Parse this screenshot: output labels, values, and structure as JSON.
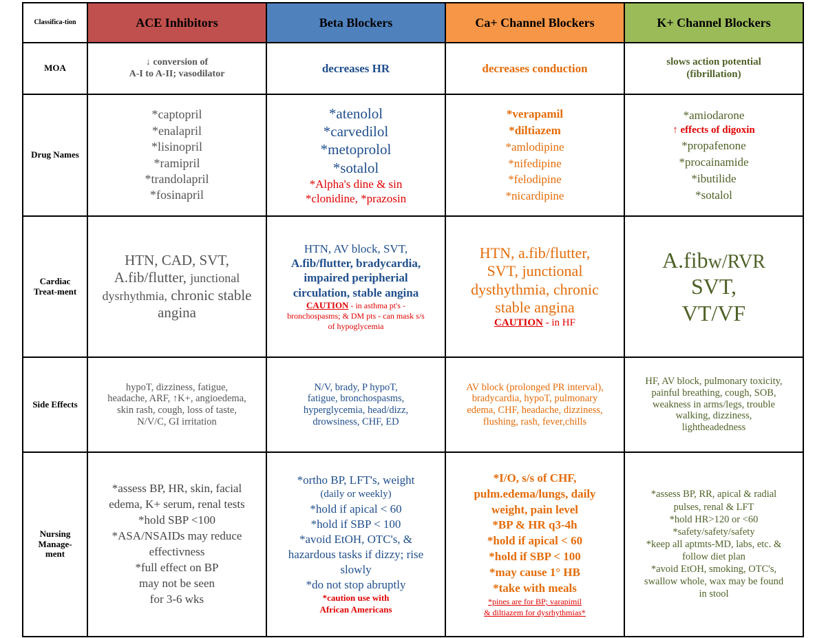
{
  "headers": {
    "classification": "Classifica-tion",
    "ace": "ACE Inhibitors",
    "beta": "Beta Blockers",
    "ca": "Ca+ Channel Blockers",
    "k": "K+ Channel Blockers"
  },
  "colors": {
    "ace": "#c0504d",
    "beta": "#4f81bd",
    "ca": "#f79646",
    "k": "#9bbb59"
  },
  "rows": {
    "moa": {
      "label": "MOA",
      "ace": [
        "↓ conversion of",
        "A-I to A-II; vasodilator"
      ],
      "beta": "decreases HR",
      "ca": "decreases conduction",
      "k": [
        "slows action potential",
        "(fibrillation)"
      ]
    },
    "drugs": {
      "label": "Drug Names",
      "ace": [
        "*captopril",
        "*enalapril",
        "*lisinopril",
        "*ramipril",
        "*trandolapril",
        "*fosinapril"
      ],
      "beta": [
        "*atenolol",
        "*carvedilol",
        "*metoprolol",
        "*sotalol"
      ],
      "beta_red": [
        "*Alpha's dine & sin",
        "*clonidine, *prazosin"
      ],
      "ca_bold": [
        "*verapamil",
        "*diltiazem"
      ],
      "ca": [
        "*amlodipine",
        "*nifedipine",
        "*felodipine",
        "*nicardipine"
      ],
      "k": {
        "first": "*amiodarone",
        "red": "↑ effects of digoxin",
        "rest": [
          "*propafenone",
          "*procainamide",
          "*ibutilide",
          "*sotalol"
        ]
      }
    },
    "cardiac": {
      "label": [
        "Cardiac",
        "Treat-ment"
      ],
      "ace": [
        "HTN, CAD, SVT,",
        "A.fib/flutter,",
        "junctional",
        "dysrhythmia,",
        "chronic stable",
        "angina"
      ],
      "beta": [
        "HTN, AV block, SVT,",
        "A.fib/flutter, bradycardia,",
        "impaired peripherial",
        "circulation, stable angina"
      ],
      "beta_caution": {
        "word": "CAUTION",
        "text": " - in asthma pt's -",
        "lines": [
          "bronchospasms; & DM pts - can mask s/s",
          "of hypoglycemia"
        ]
      },
      "ca": [
        "HTN, a.fib/flutter,",
        "SVT, junctional",
        "dysthythmia, chronic",
        "stable angina"
      ],
      "ca_caution": {
        "word": "CAUTION",
        "text": " - in HF"
      },
      "k": {
        "afib": "A.fib",
        "w": "w/RVR",
        "lines": [
          "SVT,",
          "VT/VF"
        ]
      }
    },
    "side": {
      "label": "Side Effects",
      "ace": [
        "hypoT, dizziness, fatigue,",
        "headache, ARF, ↑K+, angioedema,",
        "skin rash, cough, loss of taste,",
        "N/V/C, GI irritation"
      ],
      "beta": [
        "N/V,  brady, P hypoT,",
        "fatigue, bronchospasms,",
        "hyperglycemia, head/dizz,",
        "drowsiness, CHF, ED"
      ],
      "ca": [
        "AV block (prolonged PR interval),",
        "bradycardia, hypoT, pulmonary",
        "edema, CHF, headache, dizziness,",
        "flushing, rash, fever,chills"
      ],
      "k": [
        "HF, AV block, pulmonary toxicity,",
        "painful breathing, cough, SOB,",
        "weakness in arms/legs, trouble",
        "walking, dizziness,",
        "lightheadedness"
      ]
    },
    "nursing": {
      "label": [
        "Nursing",
        "Manage-",
        "ment"
      ],
      "ace": [
        "*assess BP, HR, skin, facial",
        "edema, K+ serum, renal tests",
        "*hold SBP <100",
        "*ASA/NSAIDs may reduce",
        "effectivness",
        "*full effect on BP",
        "may not be seen",
        "for 3-6 wks"
      ],
      "beta": {
        "line1": "*ortho BP, LFT's, weight",
        "line2": "(daily or weekly)",
        "rest": [
          "*hold if apical < 60",
          "*hold if SBP < 100",
          "*avoid EtOH, OTC's, &",
          "hazardous tasks if dizzy; rise",
          "slowly",
          "*do not stop abruptly"
        ],
        "red": [
          "*caution use with",
          "African Americans"
        ]
      },
      "ca": {
        "lines": [
          "*I/O, s/s of CHF,",
          "pulm.edema/lungs, daily",
          "weight, pain level",
          "*BP & HR q3-4h",
          "*hold if apical < 60",
          "*hold if SBP < 100",
          "*may cause 1° HB",
          "*take with meals"
        ],
        "red": [
          "*pines are for BP; varapimil",
          "& diltiazem for dysrhythmias*"
        ]
      },
      "k": [
        "*assess BP, RR, apical & radial",
        "pulses, renal & LFT",
        "*hold HR>120 or <60",
        "*safety/safety/safety",
        "*keep all aptmts-MD, labs, etc. &",
        "follow diet plan",
        "*avoid EtOH, smoking, OTC's,",
        "swallow whole, wax may be found",
        "in stool"
      ]
    }
  }
}
